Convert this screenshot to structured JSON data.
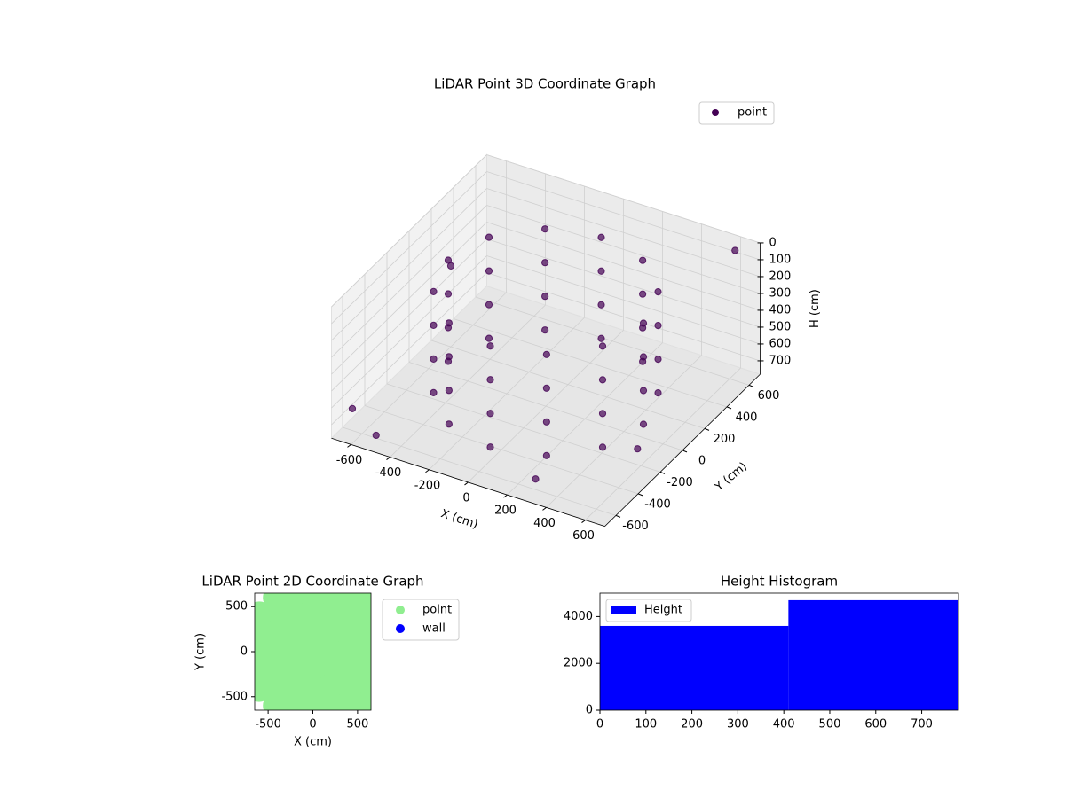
{
  "chart_data": [
    {
      "type": "scatter3d",
      "title": "LiDAR Point 3D Coordinate Graph",
      "x_label": "X (cm)",
      "y_label": "Y (cm)",
      "z_label": "H (cm)",
      "xlim": [
        -700,
        700
      ],
      "ylim": [
        -700,
        700
      ],
      "zlim": [
        0,
        780
      ],
      "z_inverted": true,
      "xticks": [
        -600,
        -400,
        -200,
        0,
        200,
        400,
        600
      ],
      "yticks": [
        -600,
        -400,
        -200,
        0,
        200,
        400,
        600
      ],
      "zticks": [
        0,
        100,
        200,
        300,
        400,
        500,
        600,
        700
      ],
      "grid": true,
      "legend": "upper right",
      "series": [
        {
          "name": "point",
          "color": "#440154",
          "x": [
            500,
            433,
            250,
            0,
            -250,
            -433,
            -500,
            -433,
            -250,
            0,
            250,
            433,
            500,
            433,
            250,
            0,
            -250,
            -433,
            -500,
            -433,
            -250,
            0,
            250,
            433,
            500,
            433,
            250,
            0,
            -250,
            -433,
            -500,
            -433,
            -250,
            0,
            250,
            433,
            500,
            433,
            250,
            0,
            -250,
            -433,
            -500,
            -433,
            -250,
            0,
            250,
            433,
            -650,
            -500,
            640,
            600,
            -600,
            300
          ],
          "y": [
            0,
            250,
            433,
            500,
            433,
            250,
            0,
            -250,
            -433,
            -500,
            -433,
            -250,
            0,
            250,
            433,
            500,
            433,
            250,
            0,
            -250,
            -433,
            -500,
            -433,
            -250,
            0,
            250,
            433,
            500,
            433,
            250,
            0,
            -250,
            -433,
            -500,
            -433,
            -250,
            0,
            250,
            433,
            500,
            433,
            250,
            0,
            -250,
            -433,
            -500,
            -433,
            -250,
            -600,
            -650,
            -300,
            650,
            200,
            -620
          ],
          "z": [
            100,
            100,
            100,
            100,
            100,
            100,
            100,
            100,
            100,
            100,
            100,
            100,
            300,
            300,
            300,
            300,
            300,
            300,
            300,
            300,
            300,
            300,
            300,
            300,
            500,
            500,
            500,
            500,
            500,
            500,
            500,
            500,
            500,
            500,
            500,
            500,
            700,
            700,
            700,
            700,
            700,
            700,
            700,
            700,
            700,
            700,
            700,
            700,
            650,
            720,
            600,
            50,
            300,
            700
          ]
        }
      ]
    },
    {
      "type": "scatter",
      "title": "LiDAR Point 2D Coordinate Graph",
      "x_label": "X (cm)",
      "y_label": "Y (cm)",
      "xlim": [
        -650,
        650
      ],
      "ylim": [
        -650,
        650
      ],
      "xticks": [
        -500,
        0,
        500
      ],
      "yticks": [
        -500,
        0,
        500
      ],
      "legend": "outside right",
      "series": [
        {
          "name": "point",
          "color": "#90ee90",
          "x": [
            -400,
            -200,
            0,
            200,
            400,
            600,
            -600,
            -400,
            -200,
            0,
            200,
            400,
            600,
            -600,
            -400,
            -200,
            0,
            200,
            400,
            600,
            -600,
            -400,
            -200,
            0,
            200,
            400,
            600,
            -600,
            -400,
            -200,
            0,
            200,
            400,
            600,
            -600,
            -400,
            -200,
            0,
            200,
            400,
            600,
            -400,
            -200,
            0,
            200,
            400,
            600
          ],
          "y": [
            600,
            600,
            600,
            600,
            600,
            600,
            400,
            400,
            400,
            400,
            400,
            400,
            400,
            200,
            200,
            200,
            200,
            200,
            200,
            200,
            0,
            0,
            0,
            0,
            0,
            0,
            0,
            -200,
            -200,
            -200,
            -200,
            -200,
            -200,
            -200,
            -400,
            -400,
            -400,
            -400,
            -400,
            -400,
            -400,
            -600,
            -600,
            -600,
            -600,
            -600,
            -600
          ]
        },
        {
          "name": "wall",
          "color": "#0000ff",
          "x": [],
          "y": []
        }
      ]
    },
    {
      "type": "histogram",
      "title": "Height Histogram",
      "bins": [
        0,
        410,
        780
      ],
      "xlim": [
        0,
        780
      ],
      "ylim": [
        0,
        5000
      ],
      "xticks": [
        0,
        100,
        200,
        300,
        400,
        500,
        600,
        700
      ],
      "yticks": [
        0,
        2000,
        4000
      ],
      "legend": "upper left",
      "series": [
        {
          "name": "Height",
          "color": "#0000ff",
          "values": [
            3600,
            4700
          ]
        }
      ]
    }
  ]
}
